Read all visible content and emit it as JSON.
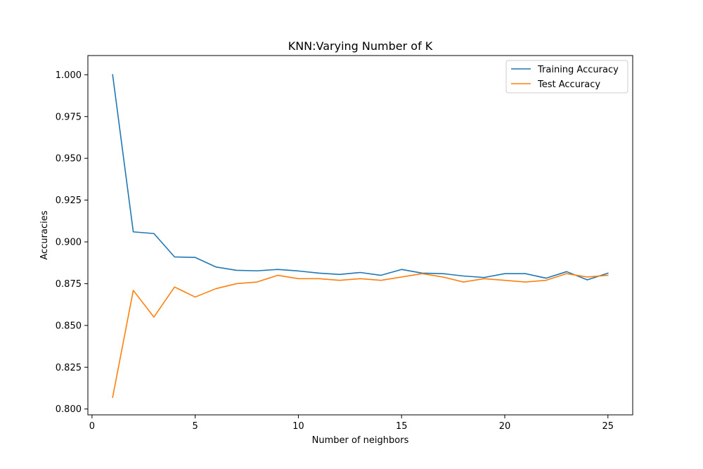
{
  "chart_data": {
    "type": "line",
    "title": "KNN:Varying Number of K",
    "xlabel": "Number of neighbors",
    "ylabel": "Accuracies",
    "xlim": [
      -0.2,
      26.2
    ],
    "ylim": [
      0.7965,
      1.0115
    ],
    "xticks": [
      0,
      5,
      10,
      15,
      20,
      25
    ],
    "xtick_labels": [
      "0",
      "5",
      "10",
      "15",
      "20",
      "25"
    ],
    "yticks": [
      0.8,
      0.825,
      0.85,
      0.875,
      0.9,
      0.925,
      0.95,
      0.975,
      1.0
    ],
    "ytick_labels": [
      "0.800",
      "0.825",
      "0.850",
      "0.875",
      "0.900",
      "0.925",
      "0.950",
      "0.975",
      "1.000"
    ],
    "grid": false,
    "legend_position": "top-right",
    "x": [
      1,
      2,
      3,
      4,
      5,
      6,
      7,
      8,
      9,
      10,
      11,
      12,
      13,
      14,
      15,
      16,
      17,
      18,
      19,
      20,
      21,
      22,
      23,
      24,
      25
    ],
    "series": [
      {
        "name": "Training Accuracy",
        "color": "#1f77b4",
        "values": [
          1.0,
          0.906,
          0.905,
          0.891,
          0.8907,
          0.885,
          0.883,
          0.8827,
          0.8835,
          0.8826,
          0.8813,
          0.8805,
          0.8817,
          0.88,
          0.8835,
          0.8813,
          0.881,
          0.8796,
          0.8787,
          0.881,
          0.881,
          0.8783,
          0.8822,
          0.8773,
          0.8813
        ]
      },
      {
        "name": "Test Accuracy",
        "color": "#ff7f0e",
        "values": [
          0.807,
          0.871,
          0.855,
          0.873,
          0.867,
          0.872,
          0.875,
          0.876,
          0.88,
          0.878,
          0.878,
          0.877,
          0.878,
          0.877,
          0.879,
          0.881,
          0.879,
          0.876,
          0.878,
          0.877,
          0.876,
          0.877,
          0.881,
          0.879,
          0.88
        ]
      }
    ]
  }
}
